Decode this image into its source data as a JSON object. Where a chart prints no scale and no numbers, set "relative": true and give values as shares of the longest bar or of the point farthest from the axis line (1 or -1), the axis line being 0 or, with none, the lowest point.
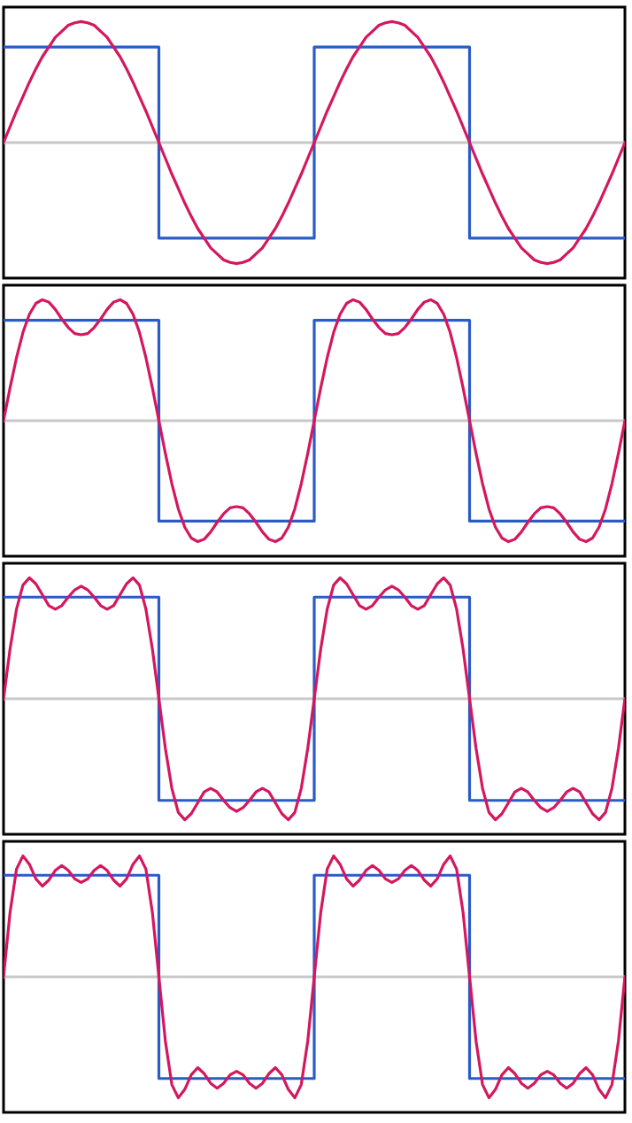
{
  "chart_data": [
    {
      "type": "line",
      "relative": true,
      "tick_labels": false,
      "categories": [
        null,
        null,
        null,
        null,
        null,
        null,
        null,
        null,
        null,
        null,
        null,
        null,
        null,
        null,
        null,
        null,
        null,
        null,
        null,
        null,
        null,
        null,
        null,
        null,
        null,
        null,
        null,
        null,
        null,
        null,
        null,
        null,
        null,
        null,
        null,
        null,
        null,
        null,
        null,
        null,
        null,
        null,
        null,
        null,
        null,
        null,
        null,
        null,
        null,
        null,
        null,
        null,
        null,
        null,
        null,
        null,
        null,
        null,
        null,
        null,
        null,
        null,
        null,
        null,
        null,
        null,
        null,
        null,
        null,
        null,
        null,
        null,
        null,
        null,
        null,
        null,
        null,
        null,
        null,
        null,
        null,
        null,
        null,
        null,
        null,
        null,
        null,
        null,
        null,
        null,
        null,
        null,
        null,
        null,
        null,
        null,
        null
      ],
      "ref_lines": [
        {
          "axis": "y",
          "value": 0,
          "color": "#c8c8c8"
        }
      ],
      "series": [
        {
          "type": "step",
          "color": "#2a5cc8",
          "values": [
            0.79,
            0.79,
            0.79,
            0.79,
            0.79,
            0.79,
            0.79,
            0.79,
            0.79,
            0.79,
            0.79,
            0.79,
            0.79,
            0.79,
            0.79,
            0.79,
            0.79,
            0.79,
            0.79,
            0.79,
            0.79,
            0.79,
            0.79,
            0.79,
            -0.79,
            -0.79,
            -0.79,
            -0.79,
            -0.79,
            -0.79,
            -0.79,
            -0.79,
            -0.79,
            -0.79,
            -0.79,
            -0.79,
            -0.79,
            -0.79,
            -0.79,
            -0.79,
            -0.79,
            -0.79,
            -0.79,
            -0.79,
            -0.79,
            -0.79,
            -0.79,
            -0.79,
            0.79,
            0.79,
            0.79,
            0.79,
            0.79,
            0.79,
            0.79,
            0.79,
            0.79,
            0.79,
            0.79,
            0.79,
            0.79,
            0.79,
            0.79,
            0.79,
            0.79,
            0.79,
            0.79,
            0.79,
            0.79,
            0.79,
            0.79,
            0.79,
            -0.79,
            -0.79,
            -0.79,
            -0.79,
            -0.79,
            -0.79,
            -0.79,
            -0.79,
            -0.79,
            -0.79,
            -0.79,
            -0.79,
            -0.79,
            -0.79,
            -0.79,
            -0.79,
            -0.79,
            -0.79,
            -0.79,
            -0.79,
            -0.79,
            -0.79,
            -0.79,
            -0.79,
            -0.79
          ]
        },
        {
          "type": "line",
          "color": "#d4175e",
          "values": [
            0,
            0.13,
            0.26,
            0.38,
            0.5,
            0.61,
            0.71,
            0.79,
            0.87,
            0.92,
            0.97,
            0.99,
            1,
            0.99,
            0.97,
            0.92,
            0.87,
            0.79,
            0.71,
            0.61,
            0.5,
            0.38,
            0.26,
            0.13,
            0,
            -0.13,
            -0.26,
            -0.38,
            -0.5,
            -0.61,
            -0.71,
            -0.79,
            -0.87,
            -0.92,
            -0.97,
            -0.99,
            -1,
            -0.99,
            -0.97,
            -0.92,
            -0.87,
            -0.79,
            -0.71,
            -0.61,
            -0.5,
            -0.38,
            -0.26,
            -0.13,
            0,
            0.13,
            0.26,
            0.38,
            0.5,
            0.61,
            0.71,
            0.79,
            0.87,
            0.92,
            0.97,
            0.99,
            1,
            0.99,
            0.97,
            0.92,
            0.87,
            0.79,
            0.71,
            0.61,
            0.5,
            0.38,
            0.26,
            0.13,
            0,
            -0.13,
            -0.26,
            -0.38,
            -0.5,
            -0.61,
            -0.71,
            -0.79,
            -0.87,
            -0.92,
            -0.97,
            -0.99,
            -1,
            -0.99,
            -0.97,
            -0.92,
            -0.87,
            -0.79,
            -0.71,
            -0.61,
            -0.5,
            -0.38,
            -0.26,
            -0.13,
            0
          ]
        }
      ]
    },
    {
      "type": "line",
      "relative": true,
      "tick_labels": false,
      "categories": [
        null,
        null,
        null,
        null,
        null,
        null,
        null,
        null,
        null,
        null,
        null,
        null,
        null,
        null,
        null,
        null,
        null,
        null,
        null,
        null,
        null,
        null,
        null,
        null,
        null,
        null,
        null,
        null,
        null,
        null,
        null,
        null,
        null,
        null,
        null,
        null,
        null,
        null,
        null,
        null,
        null,
        null,
        null,
        null,
        null,
        null,
        null,
        null,
        null,
        null,
        null,
        null,
        null,
        null,
        null,
        null,
        null,
        null,
        null,
        null,
        null,
        null,
        null,
        null,
        null,
        null,
        null,
        null,
        null,
        null,
        null,
        null,
        null,
        null,
        null,
        null,
        null,
        null,
        null,
        null,
        null,
        null,
        null,
        null,
        null,
        null,
        null,
        null,
        null,
        null,
        null,
        null,
        null,
        null,
        null,
        null,
        null
      ],
      "ref_lines": [
        {
          "axis": "y",
          "value": 0,
          "color": "#c8c8c8"
        }
      ],
      "series": [
        {
          "type": "step",
          "color": "#2a5cc8",
          "values": [
            0.83,
            0.83,
            0.83,
            0.83,
            0.83,
            0.83,
            0.83,
            0.83,
            0.83,
            0.83,
            0.83,
            0.83,
            0.83,
            0.83,
            0.83,
            0.83,
            0.83,
            0.83,
            0.83,
            0.83,
            0.83,
            0.83,
            0.83,
            0.83,
            -0.83,
            -0.83,
            -0.83,
            -0.83,
            -0.83,
            -0.83,
            -0.83,
            -0.83,
            -0.83,
            -0.83,
            -0.83,
            -0.83,
            -0.83,
            -0.83,
            -0.83,
            -0.83,
            -0.83,
            -0.83,
            -0.83,
            -0.83,
            -0.83,
            -0.83,
            -0.83,
            -0.83,
            0.83,
            0.83,
            0.83,
            0.83,
            0.83,
            0.83,
            0.83,
            0.83,
            0.83,
            0.83,
            0.83,
            0.83,
            0.83,
            0.83,
            0.83,
            0.83,
            0.83,
            0.83,
            0.83,
            0.83,
            0.83,
            0.83,
            0.83,
            0.83,
            -0.83,
            -0.83,
            -0.83,
            -0.83,
            -0.83,
            -0.83,
            -0.83,
            -0.83,
            -0.83,
            -0.83,
            -0.83,
            -0.83,
            -0.83,
            -0.83,
            -0.83,
            -0.83,
            -0.83,
            -0.83,
            -0.83,
            -0.83,
            -0.83,
            -0.83,
            -0.83,
            -0.83,
            -0.83
          ]
        },
        {
          "type": "line",
          "color": "#d4175e",
          "values": [
            0,
            0.27,
            0.52,
            0.73,
            0.88,
            0.97,
            1,
            0.98,
            0.92,
            0.84,
            0.77,
            0.72,
            0.71,
            0.72,
            0.77,
            0.84,
            0.92,
            0.98,
            1,
            0.97,
            0.88,
            0.73,
            0.52,
            0.27,
            0,
            -0.27,
            -0.52,
            -0.73,
            -0.88,
            -0.97,
            -1,
            -0.98,
            -0.92,
            -0.84,
            -0.77,
            -0.72,
            -0.71,
            -0.72,
            -0.77,
            -0.84,
            -0.92,
            -0.98,
            -1,
            -0.97,
            -0.88,
            -0.73,
            -0.52,
            -0.27,
            0,
            0.27,
            0.52,
            0.73,
            0.88,
            0.97,
            1,
            0.98,
            0.92,
            0.84,
            0.77,
            0.72,
            0.71,
            0.72,
            0.77,
            0.84,
            0.92,
            0.98,
            1,
            0.97,
            0.88,
            0.73,
            0.52,
            0.27,
            0,
            -0.27,
            -0.52,
            -0.73,
            -0.88,
            -0.97,
            -1,
            -0.98,
            -0.92,
            -0.84,
            -0.77,
            -0.72,
            -0.71,
            -0.72,
            -0.77,
            -0.84,
            -0.92,
            -0.98,
            -1,
            -0.97,
            -0.88,
            -0.73,
            -0.52,
            -0.27,
            0
          ]
        }
      ]
    },
    {
      "type": "line",
      "relative": true,
      "tick_labels": false,
      "categories": [
        null,
        null,
        null,
        null,
        null,
        null,
        null,
        null,
        null,
        null,
        null,
        null,
        null,
        null,
        null,
        null,
        null,
        null,
        null,
        null,
        null,
        null,
        null,
        null,
        null,
        null,
        null,
        null,
        null,
        null,
        null,
        null,
        null,
        null,
        null,
        null,
        null,
        null,
        null,
        null,
        null,
        null,
        null,
        null,
        null,
        null,
        null,
        null,
        null,
        null,
        null,
        null,
        null,
        null,
        null,
        null,
        null,
        null,
        null,
        null,
        null,
        null,
        null,
        null,
        null,
        null,
        null,
        null,
        null,
        null,
        null,
        null,
        null,
        null,
        null,
        null,
        null,
        null,
        null,
        null,
        null,
        null,
        null,
        null,
        null,
        null,
        null,
        null,
        null,
        null,
        null,
        null,
        null,
        null,
        null,
        null,
        null
      ],
      "ref_lines": [
        {
          "axis": "y",
          "value": 0,
          "color": "#c8c8c8"
        }
      ],
      "series": [
        {
          "type": "step",
          "color": "#2a5cc8",
          "values": [
            0.84,
            0.84,
            0.84,
            0.84,
            0.84,
            0.84,
            0.84,
            0.84,
            0.84,
            0.84,
            0.84,
            0.84,
            0.84,
            0.84,
            0.84,
            0.84,
            0.84,
            0.84,
            0.84,
            0.84,
            0.84,
            0.84,
            0.84,
            0.84,
            -0.84,
            -0.84,
            -0.84,
            -0.84,
            -0.84,
            -0.84,
            -0.84,
            -0.84,
            -0.84,
            -0.84,
            -0.84,
            -0.84,
            -0.84,
            -0.84,
            -0.84,
            -0.84,
            -0.84,
            -0.84,
            -0.84,
            -0.84,
            -0.84,
            -0.84,
            -0.84,
            -0.84,
            0.84,
            0.84,
            0.84,
            0.84,
            0.84,
            0.84,
            0.84,
            0.84,
            0.84,
            0.84,
            0.84,
            0.84,
            0.84,
            0.84,
            0.84,
            0.84,
            0.84,
            0.84,
            0.84,
            0.84,
            0.84,
            0.84,
            0.84,
            0.84,
            -0.84,
            -0.84,
            -0.84,
            -0.84,
            -0.84,
            -0.84,
            -0.84,
            -0.84,
            -0.84,
            -0.84,
            -0.84,
            -0.84,
            -0.84,
            -0.84,
            -0.84,
            -0.84,
            -0.84,
            -0.84,
            -0.84,
            -0.84,
            -0.84,
            -0.84,
            -0.84,
            -0.84,
            -0.84
          ]
        },
        {
          "type": "line",
          "color": "#d4175e",
          "values": [
            0,
            0.41,
            0.74,
            0.94,
            1,
            0.95,
            0.86,
            0.77,
            0.74,
            0.77,
            0.84,
            0.9,
            0.93,
            0.9,
            0.84,
            0.77,
            0.74,
            0.77,
            0.86,
            0.95,
            1,
            0.94,
            0.74,
            0.41,
            0,
            -0.41,
            -0.74,
            -0.94,
            -1,
            -0.95,
            -0.86,
            -0.77,
            -0.74,
            -0.77,
            -0.84,
            -0.9,
            -0.93,
            -0.9,
            -0.84,
            -0.77,
            -0.74,
            -0.77,
            -0.86,
            -0.95,
            -1,
            -0.94,
            -0.74,
            -0.41,
            0,
            0.41,
            0.74,
            0.94,
            1,
            0.95,
            0.86,
            0.77,
            0.74,
            0.77,
            0.84,
            0.9,
            0.93,
            0.9,
            0.84,
            0.77,
            0.74,
            0.77,
            0.86,
            0.95,
            1,
            0.94,
            0.74,
            0.41,
            0,
            -0.41,
            -0.74,
            -0.94,
            -1,
            -0.95,
            -0.86,
            -0.77,
            -0.74,
            -0.77,
            -0.84,
            -0.9,
            -0.93,
            -0.9,
            -0.84,
            -0.77,
            -0.74,
            -0.77,
            -0.86,
            -0.95,
            -1,
            -0.94,
            -0.74,
            -0.41,
            0
          ]
        }
      ]
    },
    {
      "type": "line",
      "relative": true,
      "tick_labels": false,
      "categories": [
        null,
        null,
        null,
        null,
        null,
        null,
        null,
        null,
        null,
        null,
        null,
        null,
        null,
        null,
        null,
        null,
        null,
        null,
        null,
        null,
        null,
        null,
        null,
        null,
        null,
        null,
        null,
        null,
        null,
        null,
        null,
        null,
        null,
        null,
        null,
        null,
        null,
        null,
        null,
        null,
        null,
        null,
        null,
        null,
        null,
        null,
        null,
        null,
        null,
        null,
        null,
        null,
        null,
        null,
        null,
        null,
        null,
        null,
        null,
        null,
        null,
        null,
        null,
        null,
        null,
        null,
        null,
        null,
        null,
        null,
        null,
        null,
        null,
        null,
        null,
        null,
        null,
        null,
        null,
        null,
        null,
        null,
        null,
        null,
        null,
        null,
        null,
        null,
        null,
        null,
        null,
        null,
        null,
        null,
        null,
        null,
        null
      ],
      "ref_lines": [
        {
          "axis": "y",
          "value": 0,
          "color": "#c8c8c8"
        }
      ],
      "series": [
        {
          "type": "step",
          "color": "#2a5cc8",
          "values": [
            0.84,
            0.84,
            0.84,
            0.84,
            0.84,
            0.84,
            0.84,
            0.84,
            0.84,
            0.84,
            0.84,
            0.84,
            0.84,
            0.84,
            0.84,
            0.84,
            0.84,
            0.84,
            0.84,
            0.84,
            0.84,
            0.84,
            0.84,
            0.84,
            -0.84,
            -0.84,
            -0.84,
            -0.84,
            -0.84,
            -0.84,
            -0.84,
            -0.84,
            -0.84,
            -0.84,
            -0.84,
            -0.84,
            -0.84,
            -0.84,
            -0.84,
            -0.84,
            -0.84,
            -0.84,
            -0.84,
            -0.84,
            -0.84,
            -0.84,
            -0.84,
            -0.84,
            0.84,
            0.84,
            0.84,
            0.84,
            0.84,
            0.84,
            0.84,
            0.84,
            0.84,
            0.84,
            0.84,
            0.84,
            0.84,
            0.84,
            0.84,
            0.84,
            0.84,
            0.84,
            0.84,
            0.84,
            0.84,
            0.84,
            0.84,
            0.84,
            -0.84,
            -0.84,
            -0.84,
            -0.84,
            -0.84,
            -0.84,
            -0.84,
            -0.84,
            -0.84,
            -0.84,
            -0.84,
            -0.84,
            -0.84,
            -0.84,
            -0.84,
            -0.84,
            -0.84,
            -0.84,
            -0.84,
            -0.84,
            -0.84,
            -0.84,
            -0.84,
            -0.84,
            -0.84
          ]
        },
        {
          "type": "line",
          "color": "#d4175e",
          "values": [
            0,
            0.53,
            0.89,
            1,
            0.93,
            0.81,
            0.75,
            0.8,
            0.88,
            0.92,
            0.88,
            0.81,
            0.78,
            0.81,
            0.88,
            0.92,
            0.88,
            0.8,
            0.75,
            0.81,
            0.93,
            1,
            0.89,
            0.53,
            0,
            -0.53,
            -0.89,
            -1,
            -0.93,
            -0.81,
            -0.75,
            -0.8,
            -0.88,
            -0.92,
            -0.88,
            -0.81,
            -0.78,
            -0.81,
            -0.88,
            -0.92,
            -0.88,
            -0.8,
            -0.75,
            -0.81,
            -0.93,
            -1,
            -0.89,
            -0.53,
            0,
            0.53,
            0.89,
            1,
            0.93,
            0.81,
            0.75,
            0.8,
            0.88,
            0.92,
            0.88,
            0.81,
            0.78,
            0.81,
            0.88,
            0.92,
            0.88,
            0.8,
            0.75,
            0.81,
            0.93,
            1,
            0.89,
            0.53,
            0,
            -0.53,
            -0.89,
            -1,
            -0.93,
            -0.81,
            -0.75,
            -0.8,
            -0.88,
            -0.92,
            -0.88,
            -0.81,
            -0.78,
            -0.81,
            -0.88,
            -0.92,
            -0.88,
            -0.8,
            -0.75,
            -0.81,
            -0.93,
            -1,
            -0.89,
            -0.53,
            0
          ]
        }
      ]
    }
  ]
}
